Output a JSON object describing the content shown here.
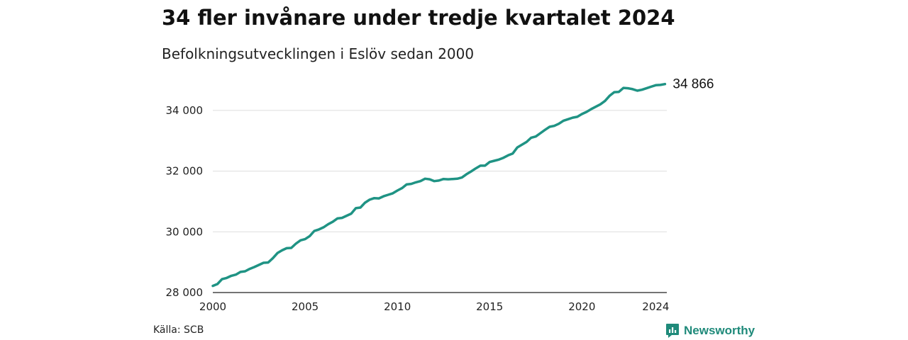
{
  "header": {
    "title": "34 fler invånare under tredje kvartalet 2024",
    "subtitle": "Befolkningsutvecklingen i Eslöv sedan 2000"
  },
  "footer": {
    "source": "Källa: SCB",
    "brand": "Newsworthy"
  },
  "colors": {
    "line": "#1f9384",
    "grid": "#dddddd",
    "brand": "#1f8a7a"
  },
  "icons": {
    "brand_logo": "newsworthy-logo-icon"
  },
  "chart_data": {
    "type": "line",
    "title": "34 fler invånare under tredje kvartalet 2024",
    "subtitle": "Befolkningsutvecklingen i Eslöv sedan 2000",
    "xlabel": "",
    "ylabel": "",
    "xlim": [
      2000,
      2024.6
    ],
    "ylim": [
      28000,
      35000
    ],
    "grid": true,
    "y_ticks": [
      {
        "value": 28000,
        "label": "28 000"
      },
      {
        "value": 30000,
        "label": "30 000"
      },
      {
        "value": 32000,
        "label": "32 000"
      },
      {
        "value": 34000,
        "label": "34 000"
      }
    ],
    "x_ticks": [
      {
        "value": 2000,
        "label": "2000"
      },
      {
        "value": 2005,
        "label": "2005"
      },
      {
        "value": 2010,
        "label": "2010"
      },
      {
        "value": 2015,
        "label": "2015"
      },
      {
        "value": 2020,
        "label": "2020"
      },
      {
        "value": 2024,
        "label": "2024"
      }
    ],
    "end_label": "34 866",
    "x": [
      2000.0,
      2000.25,
      2000.5,
      2000.75,
      2001.0,
      2001.25,
      2001.5,
      2001.75,
      2002.0,
      2002.25,
      2002.5,
      2002.75,
      2003.0,
      2003.25,
      2003.5,
      2003.75,
      2004.0,
      2004.25,
      2004.5,
      2004.75,
      2005.0,
      2005.25,
      2005.5,
      2005.75,
      2006.0,
      2006.25,
      2006.5,
      2006.75,
      2007.0,
      2007.25,
      2007.5,
      2007.75,
      2008.0,
      2008.25,
      2008.5,
      2008.75,
      2009.0,
      2009.25,
      2009.5,
      2009.75,
      2010.0,
      2010.25,
      2010.5,
      2010.75,
      2011.0,
      2011.25,
      2011.5,
      2011.75,
      2012.0,
      2012.25,
      2012.5,
      2012.75,
      2013.0,
      2013.25,
      2013.5,
      2013.75,
      2014.0,
      2014.25,
      2014.5,
      2014.75,
      2015.0,
      2015.25,
      2015.5,
      2015.75,
      2016.0,
      2016.25,
      2016.5,
      2016.75,
      2017.0,
      2017.25,
      2017.5,
      2017.75,
      2018.0,
      2018.25,
      2018.5,
      2018.75,
      2019.0,
      2019.25,
      2019.5,
      2019.75,
      2020.0,
      2020.25,
      2020.5,
      2020.75,
      2021.0,
      2021.25,
      2021.5,
      2021.75,
      2022.0,
      2022.25,
      2022.5,
      2022.75,
      2023.0,
      2023.25,
      2023.5,
      2023.75,
      2024.0,
      2024.25,
      2024.5
    ],
    "series": [
      {
        "values": [
          28220,
          28280,
          28440,
          28480,
          28550,
          28590,
          28680,
          28700,
          28780,
          28840,
          28910,
          28980,
          28990,
          29130,
          29300,
          29390,
          29460,
          29470,
          29610,
          29720,
          29760,
          29860,
          30030,
          30080,
          30150,
          30250,
          30330,
          30440,
          30460,
          30530,
          30600,
          30780,
          30800,
          30960,
          31060,
          31110,
          31100,
          31170,
          31220,
          31270,
          31360,
          31440,
          31560,
          31580,
          31630,
          31670,
          31750,
          31730,
          31670,
          31690,
          31740,
          31730,
          31740,
          31750,
          31790,
          31900,
          31990,
          32090,
          32180,
          32180,
          32300,
          32340,
          32380,
          32440,
          32520,
          32580,
          32780,
          32870,
          32960,
          33100,
          33140,
          33250,
          33360,
          33460,
          33490,
          33560,
          33660,
          33710,
          33760,
          33790,
          33880,
          33950,
          34040,
          34120,
          34200,
          34310,
          34480,
          34600,
          34610,
          34740,
          34730,
          34700,
          34650,
          34680,
          34730,
          34780,
          34830,
          34840,
          34866
        ]
      }
    ]
  }
}
